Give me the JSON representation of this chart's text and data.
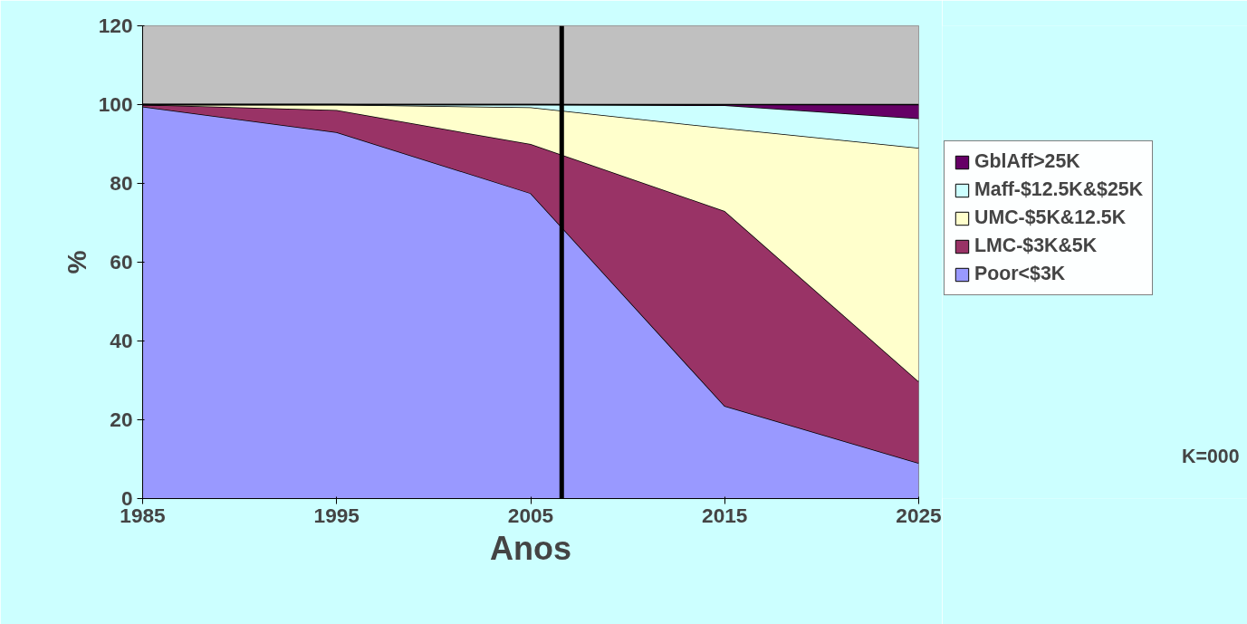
{
  "chart_data": {
    "type": "area",
    "stacked": true,
    "xlabel": "Anos",
    "ylabel": "%",
    "x": [
      1985,
      1995,
      2005,
      2015,
      2025
    ],
    "xlim": [
      1985,
      2025
    ],
    "xticks": [
      1985,
      1995,
      2005,
      2015,
      2025
    ],
    "ylim": [
      0,
      120
    ],
    "yticks": [
      0,
      20,
      40,
      60,
      80,
      100,
      120
    ],
    "series": [
      {
        "name": "Poor<$3K",
        "color": "#9999ff",
        "values": [
          99.5,
          93,
          77.5,
          23.5,
          9
        ]
      },
      {
        "name": "LMC-$3K&5K",
        "color": "#993366",
        "values": [
          0.5,
          5.6,
          12.5,
          49.5,
          20.7
        ]
      },
      {
        "name": "UMC-$5K&12.5K",
        "color": "#ffffcc",
        "values": [
          0,
          1.4,
          9.3,
          21,
          59.3
        ]
      },
      {
        "name": "Maff-$12.5K&$25K",
        "color": "#ccffff",
        "values": [
          0,
          0,
          0.7,
          5.8,
          7.5
        ]
      },
      {
        "name": "GblAff>25K",
        "color": "#660066",
        "values": [
          0,
          0,
          0,
          0.2,
          3.5
        ]
      }
    ],
    "bands": [
      {
        "axis": "y",
        "from": 100,
        "to": 120,
        "color": "#c0c0c0"
      }
    ],
    "ref_lines": [
      {
        "axis": "x",
        "value": 2006.6,
        "color": "#000000"
      }
    ],
    "legend": "right",
    "grid": false,
    "annotations": [
      "K=000"
    ]
  }
}
